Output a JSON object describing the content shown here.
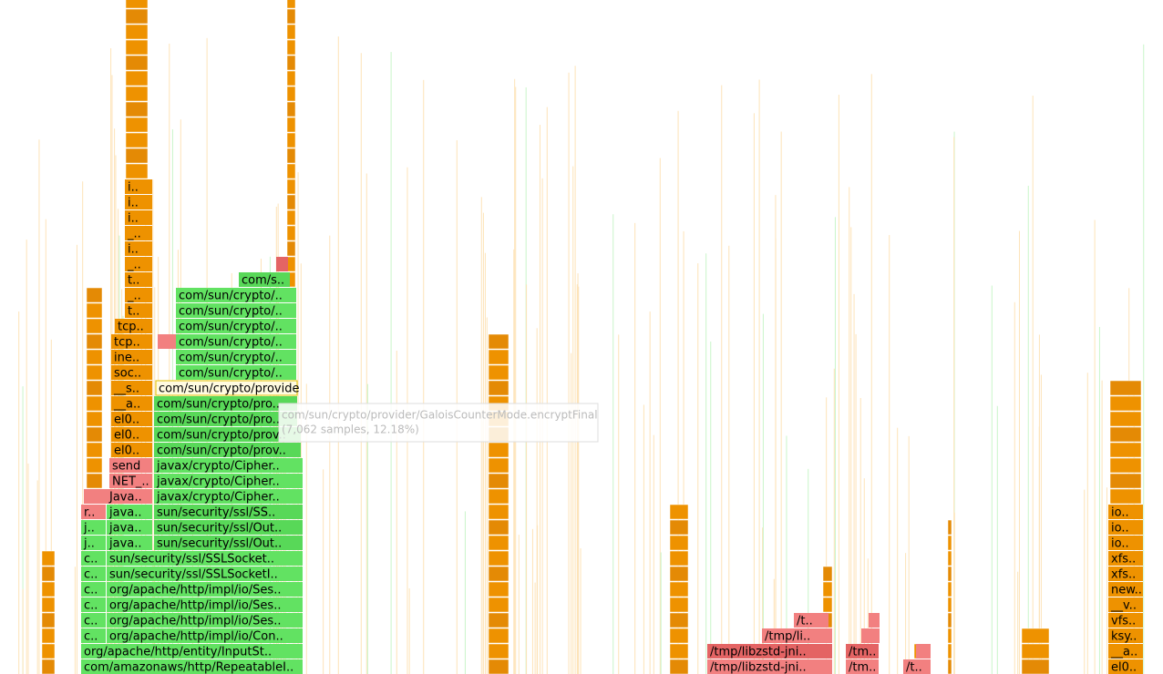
{
  "frames": [
    "com/amazonaws/http/RepeatableI..",
    "org/apache/http/entity/InputSt..",
    "c..",
    "c..",
    "c..",
    "c..",
    "c..",
    "c..",
    "org/apache/http/impl/io/Con..",
    "org/apache/http/impl/io/Ses..",
    "org/apache/http/impl/io/Ses..",
    "org/apache/http/impl/io/Ses..",
    "sun/security/ssl/SSLSocketI..",
    "sun/security/ssl/SSLSocket..",
    "j..",
    "j..",
    "r..",
    "java..",
    "java..",
    "java..",
    "Java..",
    "NET_..",
    "send",
    "el0..",
    "el0..",
    "el0..",
    "__a..",
    "__s..",
    "soc..",
    "ine..",
    "tcp..",
    "tcp..",
    "t..",
    "_..",
    "t..",
    "_..",
    "i..",
    "_..",
    "i..",
    "i..",
    "i..",
    "sun/security/ssl/Out..",
    "sun/security/ssl/Out..",
    "sun/security/ssl/SS..",
    "javax/crypto/Cipher..",
    "javax/crypto/Cipher..",
    "javax/crypto/Cipher..",
    "com/sun/crypto/prov..",
    "com/sun/crypto/prov..",
    "com/sun/crypto/pro..",
    "com/sun/crypto/pro..",
    "com/sun/crypto/provide",
    "com/sun/crypto/..",
    "com/sun/crypto/..",
    "com/sun/crypto/..",
    "com/sun/crypto/..",
    "com/sun/crypto/..",
    "com/sun/crypto/..",
    "com/s..",
    "/tmp/libzstd-jni..",
    "/tmp/libzstd-jni..",
    "/tmp/li..",
    "/t..",
    "/tm..",
    "/tm..",
    "/t..",
    "el0..",
    "__a..",
    "ksy..",
    "vfs..",
    "__v..",
    "new..",
    "xfs..",
    "xfs..",
    "io..",
    "io..",
    "io.."
  ],
  "tooltip": {
    "name": "com/sun/crypto/provider/GaloisCounterMode.encryptFinal",
    "detail": "(7,062 samples, 12.18%)"
  }
}
